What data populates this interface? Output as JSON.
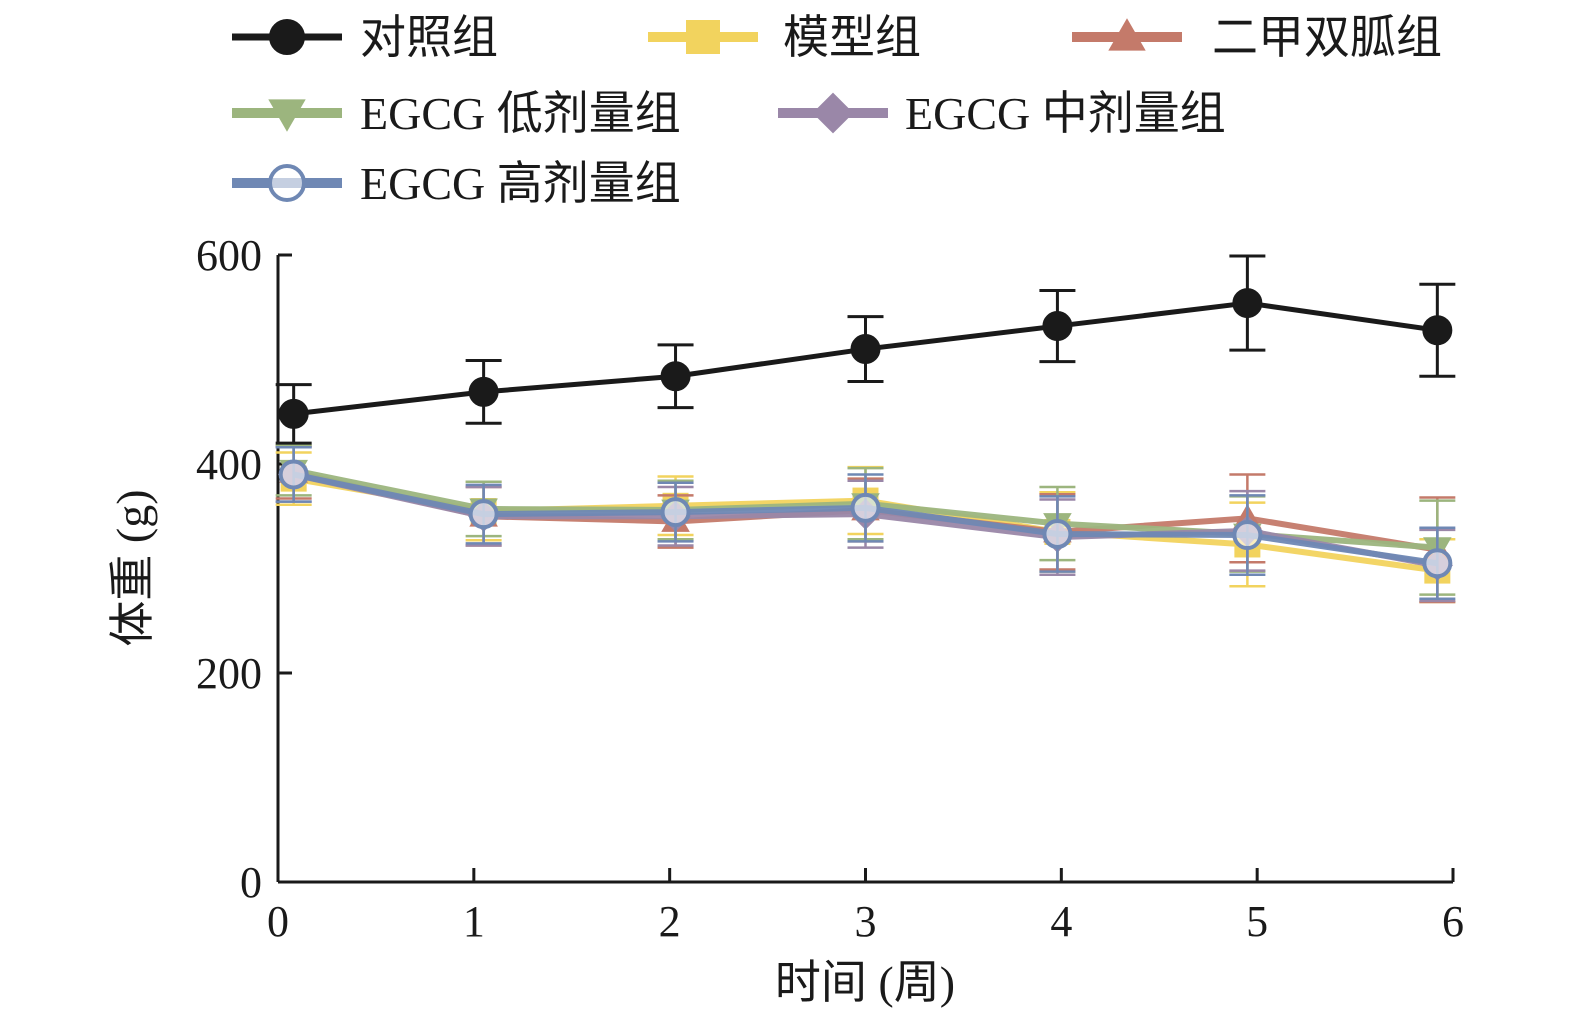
{
  "chart_data": {
    "type": "line",
    "title": "",
    "xlabel": "时间 (周)",
    "ylabel": "体重 (g)",
    "xlim": [
      0,
      6
    ],
    "ylim": [
      0,
      600
    ],
    "x_ticks": [
      "0",
      "1",
      "2",
      "3",
      "4",
      "5",
      "6"
    ],
    "y_ticks": [
      "0",
      "200",
      "400",
      "600"
    ],
    "x": [
      0.08,
      1.05,
      2.03,
      3.0,
      3.98,
      4.95,
      5.92
    ],
    "legend_position": "top",
    "series": [
      {
        "name": "对照组",
        "color": "#1a1a1a",
        "marker": "circle-filled",
        "values": [
          448,
          469,
          484,
          510,
          532,
          554,
          528
        ],
        "errors": [
          28,
          30,
          30,
          31,
          34,
          45,
          44
        ]
      },
      {
        "name": "模型组",
        "color": "#f2d35e",
        "marker": "square",
        "values": [
          386,
          355,
          360,
          365,
          335,
          323,
          298
        ],
        "errors": [
          25,
          28,
          28,
          32,
          38,
          40,
          30
        ]
      },
      {
        "name": "二甲双胍组",
        "color": "#c47a6a",
        "marker": "triangle-up",
        "values": [
          392,
          350,
          345,
          356,
          335,
          348,
          318
        ],
        "errors": [
          25,
          28,
          25,
          30,
          36,
          42,
          50
        ]
      },
      {
        "name": "EGCG 低剂量组",
        "color": "#9cb57e",
        "marker": "triangle-down",
        "values": [
          394,
          357,
          356,
          362,
          343,
          333,
          320
        ],
        "errors": [
          24,
          26,
          28,
          34,
          35,
          36,
          45
        ]
      },
      {
        "name": "EGCG 中剂量组",
        "color": "#9a87a8",
        "marker": "diamond",
        "values": [
          390,
          350,
          350,
          352,
          330,
          336,
          303
        ],
        "errors": [
          26,
          28,
          28,
          32,
          36,
          38,
          34
        ]
      },
      {
        "name": "EGCG 高剂量组",
        "color": "#6f88b4",
        "marker": "circle-open",
        "values": [
          390,
          352,
          354,
          358,
          333,
          332,
          305
        ],
        "errors": [
          26,
          28,
          28,
          32,
          36,
          38,
          34
        ]
      }
    ]
  }
}
